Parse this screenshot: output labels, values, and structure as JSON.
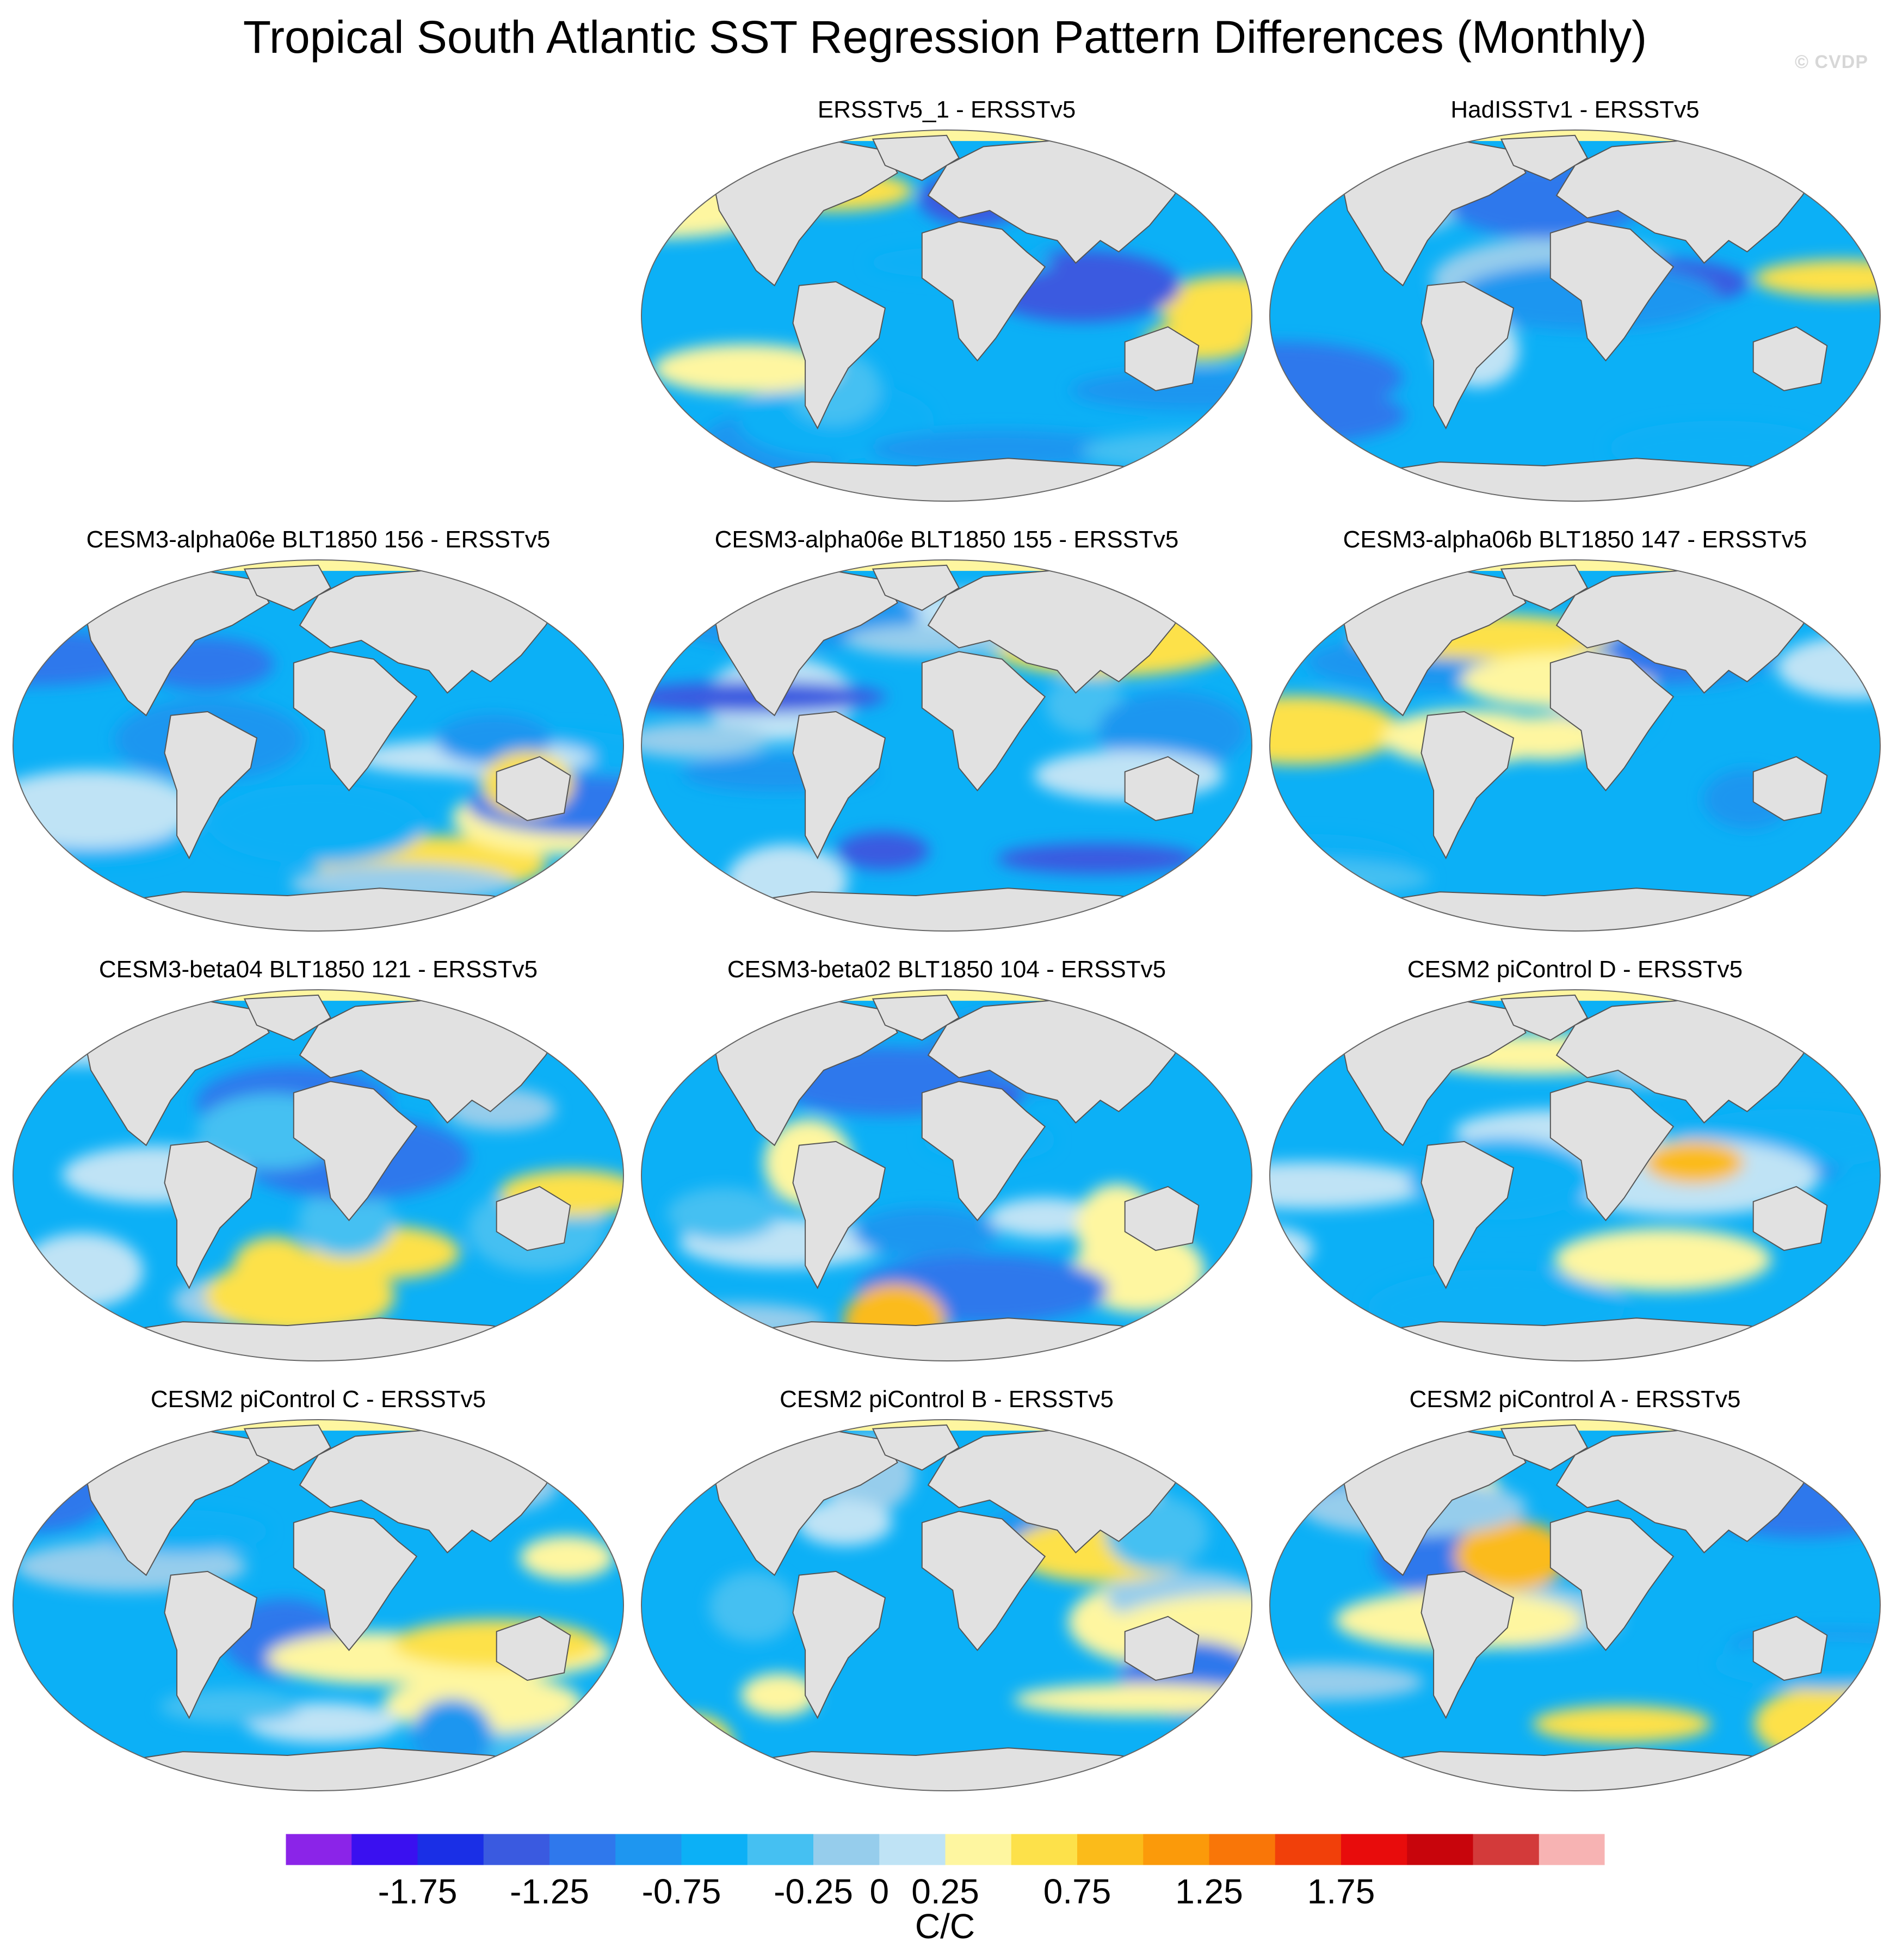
{
  "title": "Tropical South Atlantic SST Regression Pattern Differences (Monthly)",
  "watermark": "© CVDP",
  "chart_data": {
    "type": "heatmap",
    "projection": "Robinson (global, centered on 0°)",
    "variable": "SST regression pattern difference",
    "units": "C/C",
    "colorbar": {
      "levels": [
        -2.0,
        -1.75,
        -1.5,
        -1.25,
        -1.0,
        -0.75,
        -0.5,
        -0.25,
        0,
        0.25,
        0.5,
        0.75,
        1.0,
        1.25,
        1.5,
        1.75,
        2.0
      ],
      "tick_labels": [
        "-1.75",
        "-1.25",
        "-0.75",
        "-0.25",
        "0",
        "0.25",
        "0.75",
        "1.25",
        "1.75"
      ],
      "colors": [
        "#8b24e8",
        "#3a10f0",
        "#1a2fe6",
        "#3a5ae0",
        "#2f78ec",
        "#1e96f0",
        "#0cb0f6",
        "#45c0f2",
        "#96cdec",
        "#bfe3f5",
        "#fef6a0",
        "#fde14a",
        "#fbbb1a",
        "#fb9a0a",
        "#f97608",
        "#f1400a",
        "#e80c0c",
        "#c8050c",
        "#d33a3a",
        "#f7b3b3"
      ]
    },
    "panels": [
      {
        "title": "ERSSTv5_1 - ERSSTv5",
        "row": 0,
        "col": 1
      },
      {
        "title": "HadISSTv1 - ERSSTv5",
        "row": 0,
        "col": 2
      },
      {
        "title": "CESM3-alpha06e BLT1850 156 - ERSSTv5",
        "row": 1,
        "col": 0
      },
      {
        "title": "CESM3-alpha06e BLT1850 155 - ERSSTv5",
        "row": 1,
        "col": 1
      },
      {
        "title": "CESM3-alpha06b BLT1850 147 - ERSSTv5",
        "row": 1,
        "col": 2
      },
      {
        "title": "CESM3-beta04 BLT1850 121 - ERSSTv5",
        "row": 2,
        "col": 0
      },
      {
        "title": "CESM3-beta02 BLT1850 104 - ERSSTv5",
        "row": 2,
        "col": 1
      },
      {
        "title": "CESM2 piControl D - ERSSTv5",
        "row": 2,
        "col": 2
      },
      {
        "title": "CESM2 piControl C - ERSSTv5",
        "row": 3,
        "col": 0
      },
      {
        "title": "CESM2 piControl B - ERSSTv5",
        "row": 3,
        "col": 1
      },
      {
        "title": "CESM2 piControl A - ERSSTv5",
        "row": 3,
        "col": 2
      }
    ]
  }
}
